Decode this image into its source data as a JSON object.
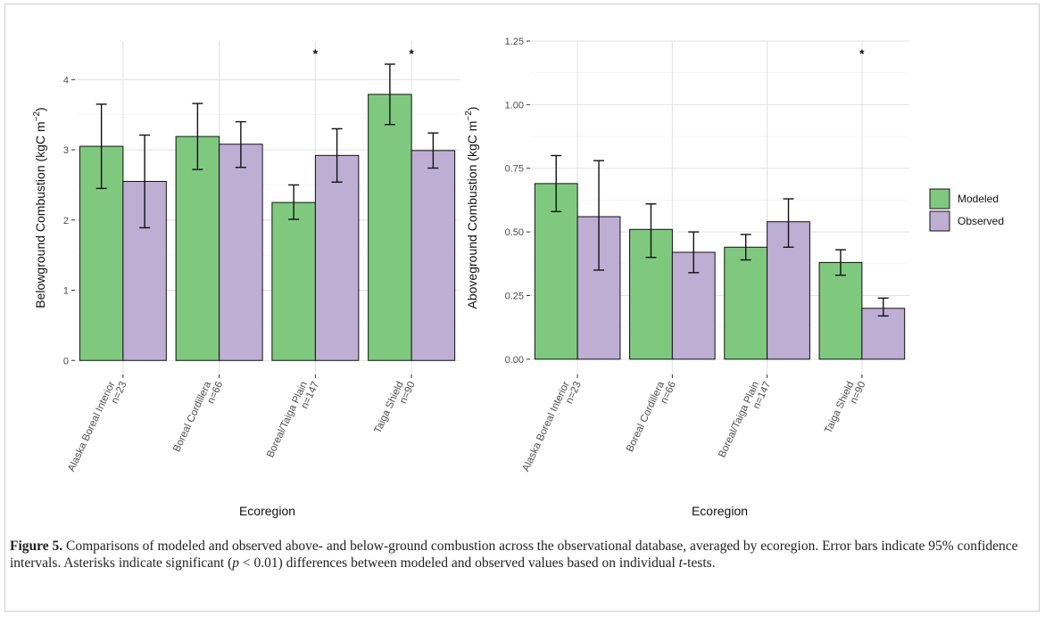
{
  "chart_data": [
    {
      "type": "bar",
      "ylabel": "Belowground Combustion (kgC m",
      "ylabel_sup": "−2",
      "ylabel_end": ")",
      "xlabel": "Ecoregion",
      "ylim": [
        -0.2,
        4.55
      ],
      "yticks": [
        "0",
        "1",
        "2",
        "3",
        "4"
      ],
      "categories": [
        {
          "name": "Alaska Boreal Interior",
          "n": "n=23"
        },
        {
          "name": "Boreal Cordillera",
          "n": "n=66"
        },
        {
          "name": "Boreal/Taiga Plain",
          "n": "n=147"
        },
        {
          "name": "Taiga Shield",
          "n": "n=90"
        }
      ],
      "series": [
        {
          "name": "Modeled",
          "color": "#7fc97f",
          "values": [
            3.05,
            3.19,
            2.25,
            3.79
          ],
          "ci_low": [
            2.45,
            2.72,
            2.01,
            3.36
          ],
          "ci_high": [
            3.65,
            3.66,
            2.5,
            4.22
          ]
        },
        {
          "name": "Observed",
          "color": "#beaed4",
          "values": [
            2.55,
            3.08,
            2.92,
            2.99
          ],
          "ci_low": [
            1.89,
            2.75,
            2.54,
            2.74
          ],
          "ci_high": [
            3.21,
            3.4,
            3.3,
            3.24
          ]
        }
      ],
      "significance": [
        "",
        "",
        "*",
        "*"
      ],
      "grid": true
    },
    {
      "type": "bar",
      "ylabel": "Aboveground Combustion (kgC m",
      "ylabel_sup": "−2",
      "ylabel_end": ")",
      "xlabel": "Ecoregion",
      "ylim": [
        -0.06,
        1.25
      ],
      "yticks": [
        "0.00",
        "0.25",
        "0.50",
        "0.75",
        "1.00",
        "1.25"
      ],
      "categories": [
        {
          "name": "Alaska Boreal Interior",
          "n": "n=23"
        },
        {
          "name": "Boreal Cordillera",
          "n": "n=66"
        },
        {
          "name": "Boreal/Taiga Plain",
          "n": "n=147"
        },
        {
          "name": "Taiga Shield",
          "n": "n=90"
        }
      ],
      "series": [
        {
          "name": "Modeled",
          "color": "#7fc97f",
          "values": [
            0.69,
            0.51,
            0.44,
            0.38
          ],
          "ci_low": [
            0.58,
            0.4,
            0.39,
            0.33
          ],
          "ci_high": [
            0.8,
            0.61,
            0.49,
            0.43
          ]
        },
        {
          "name": "Observed",
          "color": "#beaed4",
          "values": [
            0.56,
            0.42,
            0.54,
            0.2
          ],
          "ci_low": [
            0.35,
            0.34,
            0.44,
            0.17
          ],
          "ci_high": [
            0.78,
            0.5,
            0.63,
            0.24
          ]
        }
      ],
      "significance": [
        "",
        "",
        "",
        "*"
      ],
      "grid": true
    }
  ],
  "legend": {
    "items": [
      {
        "label": "Modeled",
        "color": "#7fc97f"
      },
      {
        "label": "Observed",
        "color": "#beaed4"
      }
    ]
  },
  "caption": {
    "label": "Figure 5.",
    "text_1": " Comparisons of modeled and observed above- and below-ground combustion across the observational database, averaged by ecoregion. Error bars indicate 95% confidence intervals. Asterisks indicate significant (",
    "p": "p",
    "text_2": " < 0.01) differences between modeled and observed values based on individual ",
    "t": "t",
    "text_3": "-tests."
  }
}
